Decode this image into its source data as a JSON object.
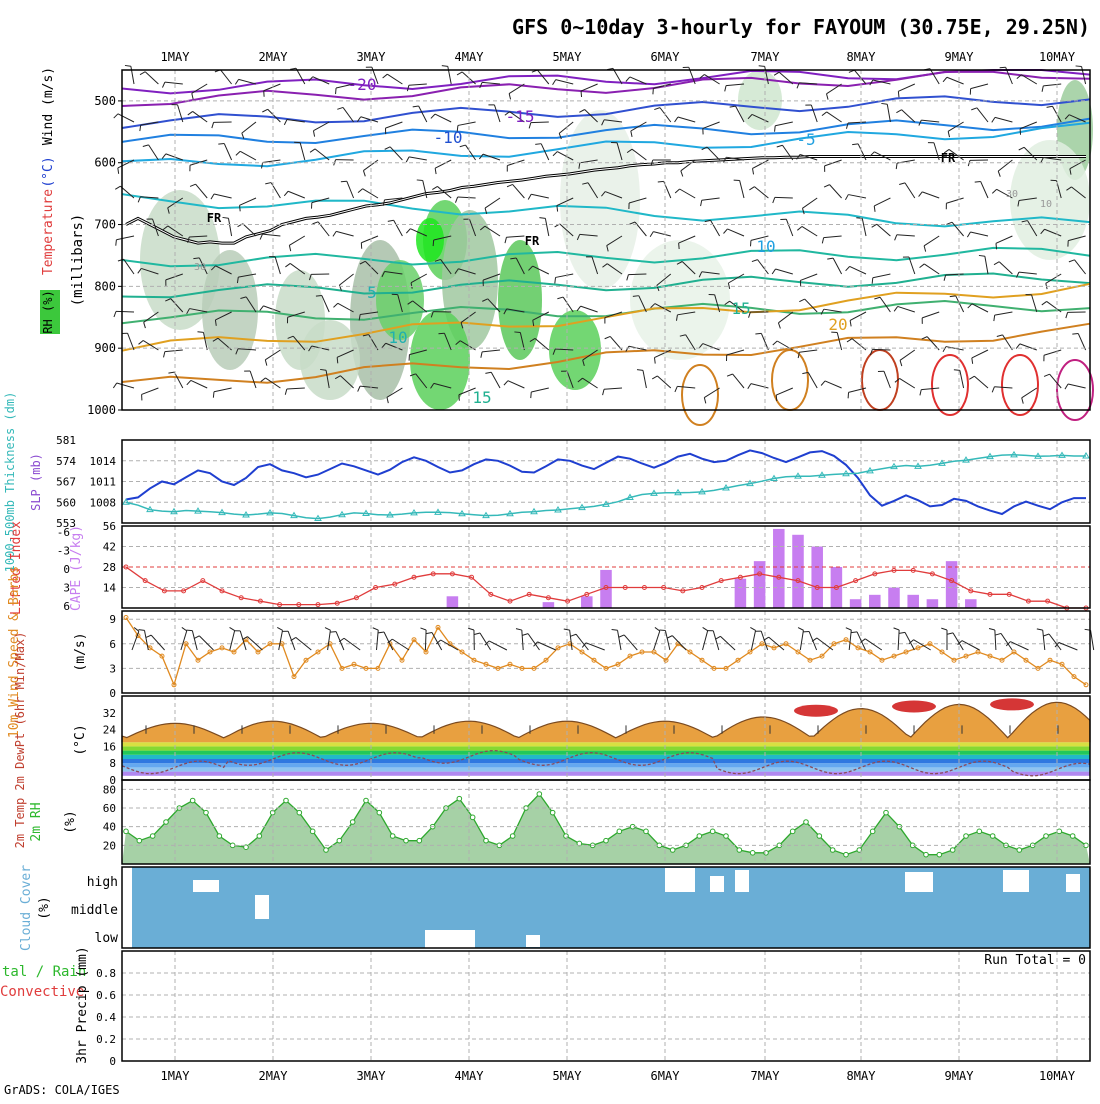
{
  "header": {
    "title": "GFS 0~10day 3-hourly for FAYOUM (30.75E, 29.25N)",
    "credit": "GrADS: COLA/IGES",
    "run_total": "Run Total = 0"
  },
  "colors": {
    "rh_green": "#3cc83c",
    "wind_barb": "#000000",
    "slp": "#1f3fd0",
    "thickness": "#35b9b9",
    "lifted_index": "#e03c3c",
    "cape": "#c77ef0",
    "wind_speed": "#e08a20",
    "cloud_bg": "#6aaed6",
    "rh2m": "#2ea82e",
    "freezing": "#000000"
  },
  "chart_data": [
    {
      "panel": "upper-air",
      "type": "heatmap",
      "x_categories": [
        "1MAY",
        "2MAY",
        "3MAY",
        "4MAY",
        "5MAY",
        "6MAY",
        "7MAY",
        "8MAY",
        "9MAY",
        "10MAY"
      ],
      "ylabel_parts": [
        {
          "text": "RH (%)",
          "color": "#3cc83c"
        },
        {
          "text": "Temperature",
          "color": "#e03c3c"
        },
        {
          "text": "(°C)",
          "color": "#2040d0"
        },
        {
          "text": "Wind (m/s)",
          "color": "#000000"
        }
      ],
      "ylabel2": "(millibars)",
      "yticks": [
        500,
        600,
        700,
        800,
        900,
        1000
      ],
      "ylim": [
        1000,
        450
      ],
      "isotherm_labels": [
        {
          "text": "-20",
          "color": "#8020c0"
        },
        {
          "text": "-15",
          "color": "#8020c0"
        },
        {
          "text": "-10",
          "color": "#2050d0"
        },
        {
          "text": "-5",
          "color": "#20a0e0"
        },
        {
          "text": "10",
          "color": "#20a0e0"
        },
        {
          "text": "5",
          "color": "#20b0b0"
        },
        {
          "text": "10",
          "color": "#20b0b0"
        },
        {
          "text": "15",
          "color": "#20b090"
        },
        {
          "text": "15",
          "color": "#20b090"
        },
        {
          "text": "20",
          "color": "#e0a020"
        }
      ],
      "freezing_labels": [
        "FR",
        "FR",
        "FR"
      ],
      "rh_labels": [
        "30",
        "30",
        "10"
      ],
      "isotherm_lines": [
        {
          "color": "#8020c0",
          "start": 480,
          "end": 450
        },
        {
          "color": "#8a20b0",
          "start": 500,
          "end": 455
        },
        {
          "color": "#3050d0",
          "start": 535,
          "end": 495
        },
        {
          "color": "#2080e0",
          "start": 565,
          "end": 535
        },
        {
          "color": "#20a8e0",
          "start": 605,
          "end": 545
        },
        {
          "color": "#20b8c8",
          "start": 660,
          "end": 700
        },
        {
          "color": "#20b8a0",
          "start": 760,
          "end": 745
        },
        {
          "color": "#20b090",
          "start": 810,
          "end": 785
        },
        {
          "color": "#40b070",
          "start": 850,
          "end": 830
        },
        {
          "color": "#e0a020",
          "start": 900,
          "end": 800
        },
        {
          "color": "#d08020",
          "start": 960,
          "end": 870
        }
      ],
      "freezing_level_mb": [
        700,
        690,
        700,
        710,
        720,
        725,
        730,
        728,
        730,
        730,
        720,
        715,
        710,
        700,
        695,
        690,
        688,
        685,
        680,
        675,
        670,
        668,
        665,
        660,
        655,
        650,
        648,
        645,
        640,
        638,
        635,
        632,
        630,
        628,
        625,
        622,
        620,
        618,
        615,
        612,
        610,
        608,
        605,
        603,
        602,
        600,
        600,
        598,
        597,
        596,
        595,
        594,
        593,
        592,
        592,
        591,
        591,
        590,
        590,
        590,
        590,
        590,
        590,
        590,
        590,
        590,
        590,
        590,
        590,
        590,
        590,
        590,
        590,
        590,
        590,
        590,
        590,
        590,
        590,
        590,
        590
      ]
    },
    {
      "panel": "slp-thickness",
      "type": "line",
      "ylabel_left": "1000-500mb Thickness (dm)",
      "ylabel_right": "SLP (mb)",
      "ticks_left": [
        553,
        560,
        567,
        574,
        581
      ],
      "ticks_right": [
        1008,
        1011,
        1014
      ],
      "ylim_left": [
        553,
        581
      ],
      "ylim_right": [
        1005,
        1017
      ],
      "series": [
        {
          "name": "SLP",
          "axis": "right",
          "values": [
            1008.4,
            1008.7,
            1010.0,
            1011.0,
            1010.6,
            1011.6,
            1012.6,
            1012.2,
            1011.0,
            1010.5,
            1011.5,
            1013.1,
            1013.5,
            1012.6,
            1012.2,
            1011.6,
            1012.0,
            1012.8,
            1013.6,
            1013.2,
            1012.6,
            1012.0,
            1012.7,
            1013.8,
            1014.5,
            1014.0,
            1013.1,
            1012.3,
            1012.6,
            1013.5,
            1014.2,
            1014.0,
            1013.3,
            1012.4,
            1012.3,
            1013.2,
            1014.2,
            1014.0,
            1013.3,
            1012.8,
            1013.7,
            1014.6,
            1014.3,
            1013.6,
            1013.0,
            1013.7,
            1014.6,
            1015.0,
            1014.3,
            1013.8,
            1014.0,
            1014.8,
            1015.5,
            1015.1,
            1014.4,
            1013.8,
            1014.5,
            1015.2,
            1015.4,
            1014.7,
            1013.4,
            1011.5,
            1009.0,
            1007.5,
            1008.2,
            1009.0,
            1008.3,
            1007.4,
            1007.6,
            1008.5,
            1008.2,
            1007.4,
            1006.8,
            1006.3,
            1007.4,
            1008.1,
            1007.5,
            1007.0,
            1008.0,
            1008.6,
            1008.6
          ]
        },
        {
          "name": "Thickness",
          "axis": "left",
          "values": [
            560.0,
            559.0,
            557.5,
            557.0,
            556.8,
            557.2,
            557.0,
            556.8,
            556.5,
            556.0,
            555.7,
            556.0,
            556.4,
            556.2,
            555.5,
            554.8,
            554.5,
            555.0,
            555.8,
            556.4,
            556.2,
            555.8,
            555.7,
            556.0,
            556.4,
            556.6,
            556.6,
            556.5,
            556.1,
            555.8,
            555.5,
            555.6,
            556.1,
            556.6,
            556.8,
            557.2,
            557.4,
            557.8,
            558.2,
            558.6,
            559.3,
            560.2,
            561.6,
            562.6,
            563.0,
            563.2,
            563.2,
            563.3,
            563.5,
            564.0,
            564.8,
            565.6,
            566.3,
            567.1,
            568.0,
            568.6,
            568.8,
            568.8,
            569.1,
            569.4,
            569.6,
            569.8,
            570.6,
            571.3,
            572.0,
            572.4,
            572.1,
            572.5,
            573.1,
            573.8,
            574.2,
            574.8,
            575.4,
            575.9,
            576.0,
            575.8,
            575.5,
            575.6,
            575.8,
            575.6,
            575.6
          ]
        }
      ]
    },
    {
      "panel": "li-cape",
      "type": "bar",
      "ylabel_left": "Lifted Index",
      "ylabel_right": "CAPE (J/kg)",
      "ticks_left": [
        "-6",
        "-3",
        "0",
        "3",
        "6"
      ],
      "ticks_right": [
        14,
        28,
        42,
        56
      ],
      "li_ylim": [
        6,
        -6
      ],
      "cape_ylim": [
        0,
        56
      ],
      "series": [
        {
          "name": "Lifted Index",
          "values": [
            0,
            2.0,
            3.5,
            3.5,
            2.0,
            3.5,
            4.5,
            5.0,
            5.5,
            5.5,
            5.5,
            5.3,
            4.5,
            3.0,
            2.5,
            1.5,
            1.0,
            1.0,
            1.5,
            4.0,
            5.0,
            4.0,
            4.5,
            5.0,
            4.0,
            3.0,
            3.0,
            3.0,
            3.0,
            3.5,
            3.0,
            2.0,
            1.5,
            1.0,
            1.5,
            2.0,
            3.0,
            3.0,
            2.0,
            1.0,
            0.5,
            0.5,
            1.0,
            2.0,
            3.5,
            4.0,
            4.0,
            5.0,
            5.0,
            6.0,
            6.0
          ]
        },
        {
          "name": "CAPE",
          "values": [
            0,
            0,
            0,
            0,
            0,
            0,
            0,
            0,
            0,
            0,
            0,
            0,
            0,
            0,
            0,
            0,
            0,
            8,
            0,
            0,
            0,
            0,
            4,
            0,
            8,
            26,
            0,
            0,
            0,
            0,
            0,
            0,
            20,
            32,
            54,
            50,
            42,
            28,
            6,
            9,
            14,
            9,
            6,
            32,
            6,
            0,
            0,
            0,
            0,
            0,
            0
          ]
        }
      ]
    },
    {
      "panel": "wind10m",
      "type": "line",
      "ylabel_left": "10m Wind Speed & Barbs",
      "unit": "(m/s)",
      "ticks": [
        0,
        3,
        6,
        9
      ],
      "ylim": [
        0,
        10
      ],
      "values": [
        9.2,
        7.0,
        5.5,
        4.5,
        1.0,
        6.0,
        4.0,
        5.0,
        5.5,
        5.0,
        6.5,
        5.0,
        6.0,
        6.0,
        2.0,
        4.0,
        5.0,
        6.0,
        3.0,
        3.5,
        3.0,
        3.0,
        6.0,
        4.0,
        6.5,
        5.0,
        8.0,
        6.0,
        5.0,
        4.0,
        3.5,
        3.0,
        3.5,
        3.0,
        3.0,
        4.0,
        5.5,
        6.0,
        5.0,
        4.0,
        3.0,
        3.5,
        4.5,
        5.0,
        5.0,
        4.0,
        6.0,
        5.0,
        4.0,
        3.0,
        3.0,
        4.0,
        5.0,
        6.0,
        5.5,
        6.0,
        5.0,
        4.0,
        4.5,
        6.0,
        6.5,
        5.5,
        5.0,
        4.0,
        4.5,
        5.0,
        5.5,
        6.0,
        5.0,
        4.0,
        4.5,
        5.0,
        4.5,
        4.0,
        5.0,
        4.0,
        3.0,
        4.0,
        3.5,
        2.0,
        1.0
      ]
    },
    {
      "panel": "temp2m",
      "type": "area",
      "ylabel_left": "2m Temp 2m DewPt (6hr Min/Max)",
      "unit": "(°C)",
      "ticks": [
        0,
        8,
        16,
        24,
        32
      ],
      "ylim": [
        0,
        40
      ],
      "temp_min": [
        20,
        20,
        18,
        17,
        19,
        17,
        17,
        16,
        17,
        16,
        18,
        19,
        17,
        20,
        20,
        18,
        18,
        18,
        18,
        17
      ],
      "temp_max": [
        27,
        28,
        27,
        28,
        28,
        28,
        30,
        34,
        36,
        37
      ],
      "dewpt": [
        6,
        10,
        10,
        11,
        10,
        10,
        6,
        6,
        6,
        5
      ]
    },
    {
      "panel": "rh2m",
      "type": "area",
      "ylabel_left": "2m RH",
      "unit": "(%)",
      "ticks": [
        20,
        40,
        60,
        80
      ],
      "ylim": [
        0,
        90
      ],
      "values": [
        35,
        25,
        30,
        45,
        60,
        68,
        55,
        30,
        20,
        18,
        30,
        55,
        68,
        55,
        35,
        15,
        25,
        45,
        68,
        55,
        30,
        25,
        25,
        40,
        60,
        70,
        50,
        25,
        20,
        30,
        60,
        75,
        55,
        30,
        22,
        20,
        25,
        35,
        40,
        35,
        20,
        15,
        20,
        30,
        35,
        30,
        15,
        12,
        12,
        20,
        35,
        45,
        30,
        15,
        10,
        15,
        35,
        55,
        40,
        20,
        10,
        10,
        15,
        30,
        35,
        30,
        20,
        15,
        20,
        30,
        35,
        30,
        20
      ]
    },
    {
      "panel": "cloud",
      "type": "bar",
      "ylabel_left": "Cloud Cover",
      "unit": "(%)",
      "levels": [
        "high",
        "middle",
        "low"
      ]
    },
    {
      "panel": "precip",
      "type": "line",
      "ylabel_left": "3hr Precip (mm)",
      "side_labels": [
        {
          "text": "tal / Rain",
          "color": "#2db82d"
        },
        {
          "text": "Convective",
          "color": "#e03c3c"
        }
      ],
      "ticks": [
        0,
        0.2,
        0.4,
        0.6,
        0.8
      ],
      "ylim": [
        0,
        1
      ],
      "values": []
    }
  ]
}
